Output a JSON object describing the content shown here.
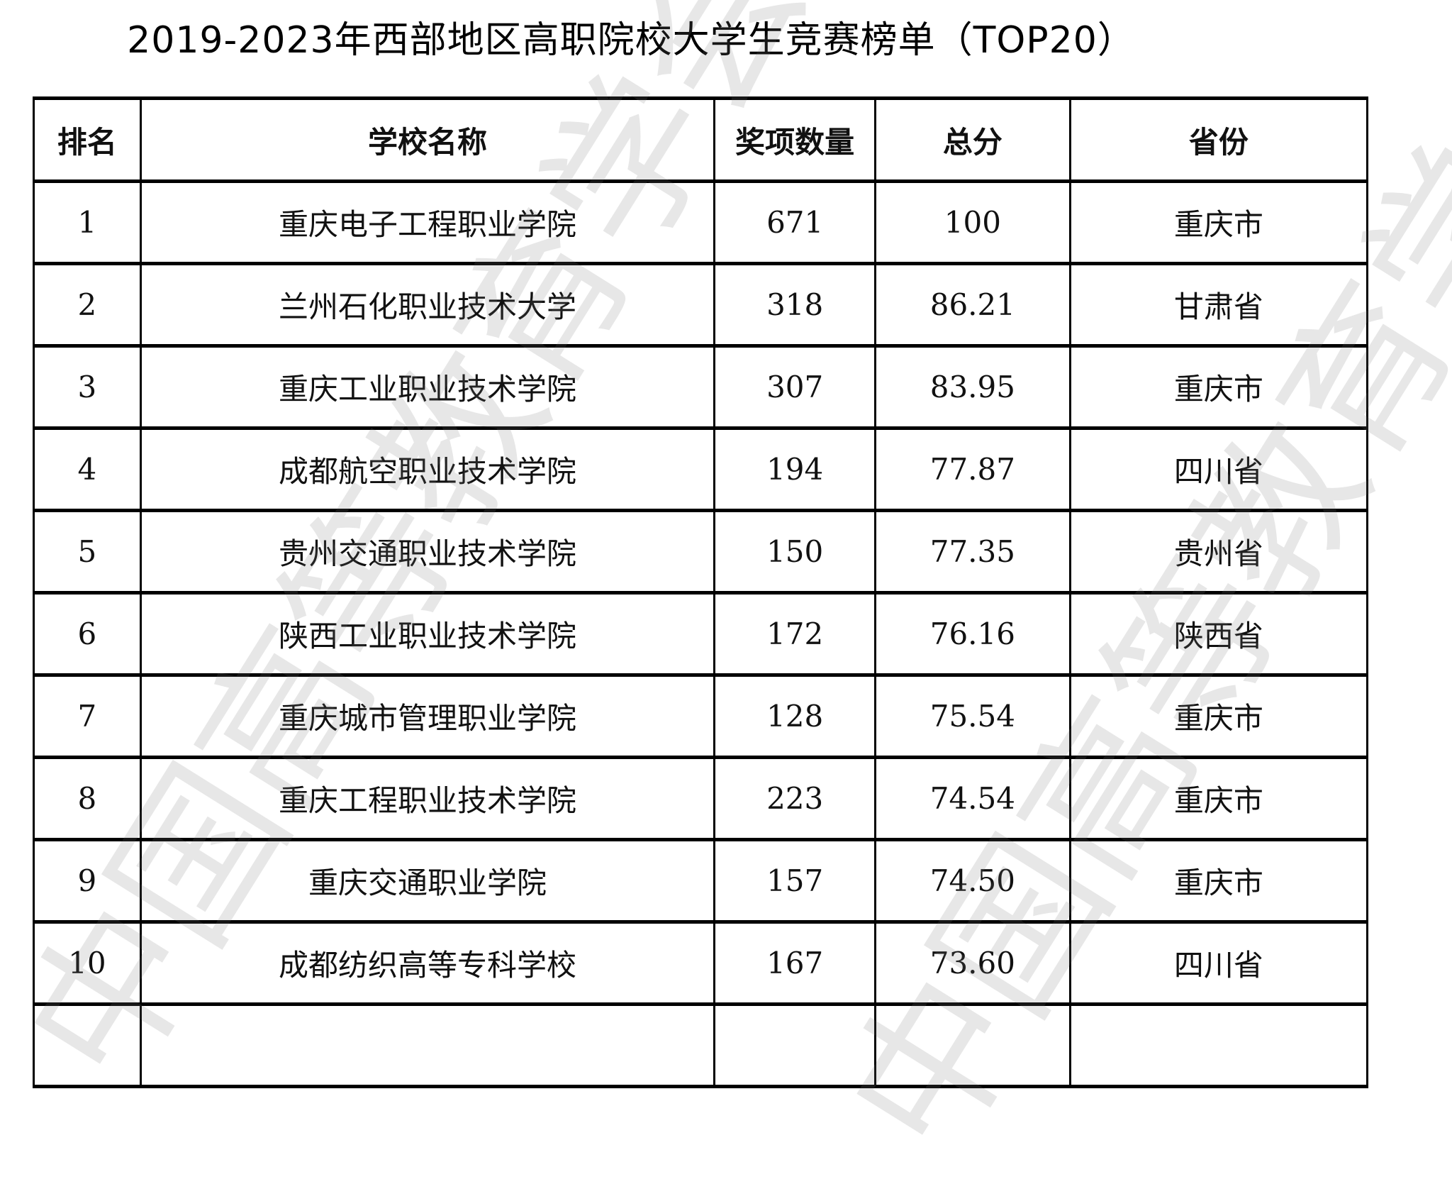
{
  "title": "2019-2023年西部地区高职院校大学生竞赛榜单（TOP20）",
  "watermark": "中国高等教育学会",
  "table": {
    "headers": [
      "排名",
      "学校名称",
      "奖项数量",
      "总分",
      "省份"
    ],
    "rows": [
      {
        "rank": "1",
        "school": "重庆电子工程职业学院",
        "awards": "671",
        "score": "100",
        "province": "重庆市"
      },
      {
        "rank": "2",
        "school": "兰州石化职业技术大学",
        "awards": "318",
        "score": "86.21",
        "province": "甘肃省"
      },
      {
        "rank": "3",
        "school": "重庆工业职业技术学院",
        "awards": "307",
        "score": "83.95",
        "province": "重庆市"
      },
      {
        "rank": "4",
        "school": "成都航空职业技术学院",
        "awards": "194",
        "score": "77.87",
        "province": "四川省"
      },
      {
        "rank": "5",
        "school": "贵州交通职业技术学院",
        "awards": "150",
        "score": "77.35",
        "province": "贵州省"
      },
      {
        "rank": "6",
        "school": "陕西工业职业技术学院",
        "awards": "172",
        "score": "76.16",
        "province": "陕西省"
      },
      {
        "rank": "7",
        "school": "重庆城市管理职业学院",
        "awards": "128",
        "score": "75.54",
        "province": "重庆市"
      },
      {
        "rank": "8",
        "school": "重庆工程职业技术学院",
        "awards": "223",
        "score": "74.54",
        "province": "重庆市"
      },
      {
        "rank": "9",
        "school": "重庆交通职业学院",
        "awards": "157",
        "score": "74.50",
        "province": "重庆市"
      },
      {
        "rank": "10",
        "school": "成都纺织高等专科学校",
        "awards": "167",
        "score": "73.60",
        "province": "四川省"
      }
    ]
  }
}
